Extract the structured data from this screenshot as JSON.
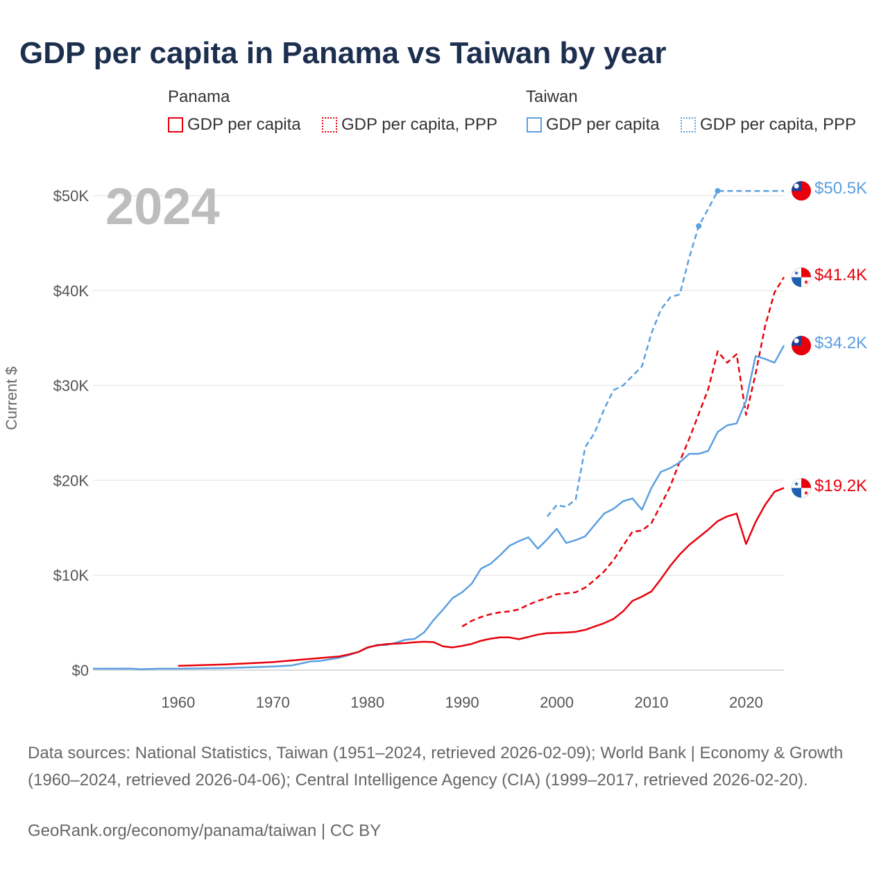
{
  "title": "GDP per capita in Panama vs Taiwan by year",
  "legend": {
    "groups": [
      "Panama",
      "Taiwan"
    ],
    "items": [
      {
        "label": "GDP per capita",
        "country": "Panama",
        "style": "solid",
        "color": "#e8000b"
      },
      {
        "label": "GDP per capita, PPP",
        "country": "Panama",
        "style": "dotted",
        "color": "#e8000b"
      },
      {
        "label": "GDP per capita",
        "country": "Taiwan",
        "style": "solid",
        "color": "#5b9fe0"
      },
      {
        "label": "GDP per capita, PPP",
        "country": "Taiwan",
        "style": "dotted",
        "color": "#5b9fe0"
      }
    ]
  },
  "year_label": "2024",
  "end_labels": {
    "taiwan_ppp": "$50.5K",
    "panama_ppp": "$41.4K",
    "taiwan_gdp": "$34.2K",
    "panama_gdp": "$19.2K"
  },
  "footer": {
    "sources": "Data sources: National Statistics, Taiwan (1951–2024, retrieved 2026-02-09); World Bank | Economy & Growth (1960–2024, retrieved 2026-04-06); Central Intelligence Agency (CIA) (1999–2017, retrieved 2026-02-20).",
    "credit": "GeoRank.org/economy/panama/taiwan | CC BY"
  },
  "colors": {
    "panama": "#e8000b",
    "taiwan": "#5b9fe0"
  },
  "chart_data": {
    "type": "line",
    "xlabel": "",
    "ylabel": "Current $",
    "xlim": [
      1951,
      2024
    ],
    "ylim": [
      0,
      50000
    ],
    "xticks": [
      1960,
      1970,
      1980,
      1990,
      2000,
      2010,
      2020
    ],
    "xtick_labels": [
      "1960",
      "1970",
      "1980",
      "1990",
      "2000",
      "2010",
      "2020"
    ],
    "yticks": [
      0,
      10000,
      20000,
      30000,
      40000,
      50000
    ],
    "ytick_labels": [
      "$0",
      "$10K",
      "$20K",
      "$30K",
      "$40K",
      "$50K"
    ],
    "grid": true,
    "series": [
      {
        "name": "Taiwan GDP per capita, PPP",
        "dashed": true,
        "color": "#5b9fe0",
        "points": [
          [
            1999,
            16200
          ],
          [
            2000,
            17400
          ],
          [
            2001,
            17200
          ],
          [
            2002,
            18000
          ],
          [
            2003,
            23500
          ],
          [
            2004,
            25000
          ],
          [
            2005,
            27500
          ],
          [
            2006,
            29500
          ],
          [
            2007,
            30000
          ],
          [
            2008,
            31000
          ],
          [
            2009,
            32000
          ],
          [
            2010,
            35500
          ],
          [
            2011,
            38000
          ],
          [
            2012,
            39300
          ],
          [
            2013,
            39600
          ],
          [
            2014,
            43500
          ],
          [
            2015,
            46800
          ],
          [
            2016,
            48600
          ],
          [
            2017,
            50500
          ],
          [
            2024,
            50500
          ]
        ],
        "markers": [
          [
            2015,
            46800
          ],
          [
            2017,
            50500
          ]
        ]
      },
      {
        "name": "Panama GDP per capita, PPP",
        "dashed": true,
        "color": "#e8000b",
        "points": [
          [
            1990,
            4600
          ],
          [
            1991,
            5200
          ],
          [
            1992,
            5600
          ],
          [
            1993,
            5900
          ],
          [
            1994,
            6100
          ],
          [
            1995,
            6200
          ],
          [
            1996,
            6400
          ],
          [
            1997,
            6900
          ],
          [
            1998,
            7300
          ],
          [
            1999,
            7600
          ],
          [
            2000,
            8000
          ],
          [
            2001,
            8100
          ],
          [
            2002,
            8200
          ],
          [
            2003,
            8700
          ],
          [
            2004,
            9500
          ],
          [
            2005,
            10400
          ],
          [
            2006,
            11600
          ],
          [
            2007,
            13100
          ],
          [
            2008,
            14600
          ],
          [
            2009,
            14700
          ],
          [
            2010,
            15500
          ],
          [
            2011,
            17400
          ],
          [
            2012,
            19400
          ],
          [
            2013,
            22000
          ],
          [
            2014,
            24400
          ],
          [
            2015,
            27000
          ],
          [
            2016,
            29600
          ],
          [
            2017,
            33600
          ],
          [
            2018,
            32400
          ],
          [
            2019,
            33300
          ],
          [
            2020,
            26900
          ],
          [
            2021,
            31200
          ],
          [
            2022,
            36200
          ],
          [
            2023,
            39800
          ],
          [
            2024,
            41400
          ]
        ]
      },
      {
        "name": "Taiwan GDP per capita",
        "dashed": false,
        "color": "#5b9fe0",
        "points": [
          [
            1951,
            150
          ],
          [
            1955,
            170
          ],
          [
            1956,
            100
          ],
          [
            1958,
            150
          ],
          [
            1960,
            150
          ],
          [
            1965,
            220
          ],
          [
            1970,
            390
          ],
          [
            1972,
            500
          ],
          [
            1973,
            700
          ],
          [
            1974,
            920
          ],
          [
            1975,
            970
          ],
          [
            1976,
            1140
          ],
          [
            1977,
            1300
          ],
          [
            1978,
            1580
          ],
          [
            1979,
            1900
          ],
          [
            1980,
            2340
          ],
          [
            1981,
            2670
          ],
          [
            1982,
            2650
          ],
          [
            1983,
            2880
          ],
          [
            1984,
            3200
          ],
          [
            1985,
            3300
          ],
          [
            1986,
            3990
          ],
          [
            1987,
            5300
          ],
          [
            1988,
            6400
          ],
          [
            1989,
            7600
          ],
          [
            1990,
            8200
          ],
          [
            1991,
            9100
          ],
          [
            1992,
            10700
          ],
          [
            1993,
            11200
          ],
          [
            1994,
            12100
          ],
          [
            1995,
            13100
          ],
          [
            1996,
            13600
          ],
          [
            1997,
            14000
          ],
          [
            1998,
            12800
          ],
          [
            1999,
            13800
          ],
          [
            2000,
            14900
          ],
          [
            2001,
            13400
          ],
          [
            2002,
            13700
          ],
          [
            2003,
            14100
          ],
          [
            2004,
            15300
          ],
          [
            2005,
            16500
          ],
          [
            2006,
            17000
          ],
          [
            2007,
            17800
          ],
          [
            2008,
            18100
          ],
          [
            2009,
            16900
          ],
          [
            2010,
            19200
          ],
          [
            2011,
            20900
          ],
          [
            2012,
            21300
          ],
          [
            2013,
            21900
          ],
          [
            2014,
            22800
          ],
          [
            2015,
            22800
          ],
          [
            2016,
            23100
          ],
          [
            2017,
            25100
          ],
          [
            2018,
            25800
          ],
          [
            2019,
            26000
          ],
          [
            2020,
            28400
          ],
          [
            2021,
            33100
          ],
          [
            2022,
            32800
          ],
          [
            2023,
            32400
          ],
          [
            2024,
            34200
          ]
        ]
      },
      {
        "name": "Panama GDP per capita",
        "dashed": false,
        "color": "#e8000b",
        "points": [
          [
            1960,
            450
          ],
          [
            1965,
            600
          ],
          [
            1970,
            850
          ],
          [
            1975,
            1280
          ],
          [
            1977,
            1440
          ],
          [
            1978,
            1650
          ],
          [
            1979,
            1900
          ],
          [
            1980,
            2400
          ],
          [
            1981,
            2600
          ],
          [
            1982,
            2750
          ],
          [
            1983,
            2800
          ],
          [
            1984,
            2850
          ],
          [
            1985,
            2940
          ],
          [
            1986,
            3000
          ],
          [
            1987,
            2950
          ],
          [
            1988,
            2500
          ],
          [
            1989,
            2400
          ],
          [
            1990,
            2560
          ],
          [
            1991,
            2760
          ],
          [
            1992,
            3100
          ],
          [
            1993,
            3320
          ],
          [
            1994,
            3460
          ],
          [
            1995,
            3450
          ],
          [
            1996,
            3260
          ],
          [
            1997,
            3500
          ],
          [
            1998,
            3750
          ],
          [
            1999,
            3900
          ],
          [
            2000,
            3930
          ],
          [
            2001,
            3960
          ],
          [
            2002,
            4040
          ],
          [
            2003,
            4250
          ],
          [
            2004,
            4600
          ],
          [
            2005,
            4950
          ],
          [
            2006,
            5400
          ],
          [
            2007,
            6200
          ],
          [
            2008,
            7300
          ],
          [
            2009,
            7750
          ],
          [
            2010,
            8300
          ],
          [
            2011,
            9600
          ],
          [
            2012,
            11000
          ],
          [
            2013,
            12200
          ],
          [
            2014,
            13200
          ],
          [
            2015,
            14000
          ],
          [
            2016,
            14800
          ],
          [
            2017,
            15700
          ],
          [
            2018,
            16200
          ],
          [
            2019,
            16500
          ],
          [
            2020,
            13300
          ],
          [
            2021,
            15600
          ],
          [
            2022,
            17400
          ],
          [
            2023,
            18800
          ],
          [
            2024,
            19200
          ]
        ]
      }
    ]
  }
}
